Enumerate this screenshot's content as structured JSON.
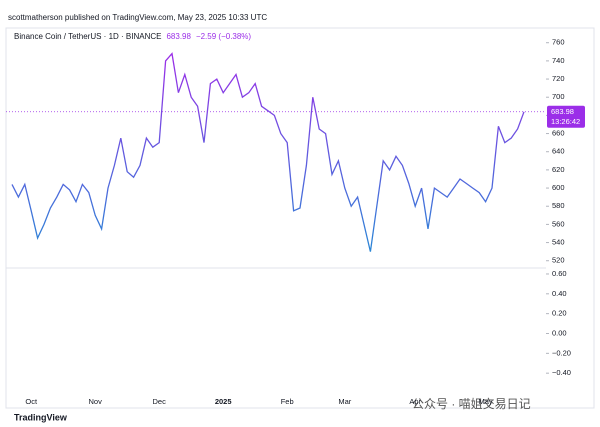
{
  "header": "scottmatherson published on TradingView.com, May 23, 2025 10:33 UTC",
  "chart_data": [
    {
      "type": "line",
      "symbol": "Binance Coin / TetherUS · 1D · BINANCE",
      "last_price": 683.98,
      "change": {
        "value": -2.59,
        "label": "−2.59 (−0.38%)"
      },
      "countdown": "13:26:42",
      "gradient": [
        "#9b2ee8",
        "#2a86d6"
      ],
      "label_color": "#9b2ee8",
      "categories": [
        null,
        null,
        null,
        "Oct",
        null,
        null,
        null,
        null,
        null,
        null,
        null,
        null,
        null,
        "Nov",
        null,
        null,
        null,
        null,
        null,
        null,
        null,
        null,
        null,
        "Dec",
        null,
        null,
        null,
        null,
        null,
        null,
        null,
        null,
        null,
        "2025",
        null,
        null,
        null,
        null,
        null,
        null,
        null,
        null,
        null,
        "Feb",
        null,
        null,
        null,
        null,
        null,
        null,
        null,
        null,
        "Mar",
        null,
        null,
        null,
        null,
        null,
        null,
        null,
        null,
        null,
        null,
        "Apr",
        null,
        null,
        null,
        null,
        null,
        null,
        null,
        null,
        null,
        null,
        "May",
        null,
        null,
        null,
        null,
        null,
        null
      ],
      "values": [
        604,
        590,
        604,
        575,
        545,
        560,
        578,
        590,
        604,
        598,
        585,
        604,
        595,
        570,
        555,
        600,
        625,
        655,
        618,
        612,
        625,
        655,
        645,
        650,
        740,
        748,
        705,
        725,
        700,
        690,
        650,
        715,
        720,
        705,
        715,
        725,
        700,
        705,
        715,
        690,
        685,
        680,
        660,
        650,
        575,
        578,
        625,
        700,
        665,
        660,
        615,
        630,
        600,
        580,
        590,
        560,
        530,
        580,
        630,
        620,
        635,
        625,
        605,
        580,
        600,
        555,
        600,
        595,
        590,
        600,
        610,
        605,
        600,
        595,
        585,
        600,
        668,
        650,
        655,
        665,
        684
      ],
      "ylim": [
        512,
        774
      ],
      "yticks": [
        520,
        540,
        560,
        580,
        600,
        620,
        640,
        660,
        680,
        700,
        720,
        740,
        760
      ]
    },
    {
      "type": "line",
      "ylim": [
        -0.62,
        0.64
      ],
      "yticks": [
        {
          "value": 0.6,
          "label": "0.60"
        },
        {
          "value": 0.4,
          "label": "0.40"
        },
        {
          "value": 0.2,
          "label": "0.20"
        },
        {
          "value": 0,
          "label": "0.00"
        },
        {
          "value": -0.2,
          "label": "−0.20"
        },
        {
          "value": -0.4,
          "label": "−0.40"
        }
      ]
    }
  ],
  "footer": {
    "brand": "TradingView",
    "watermark": "公众号 · 喵姐交易日记"
  }
}
